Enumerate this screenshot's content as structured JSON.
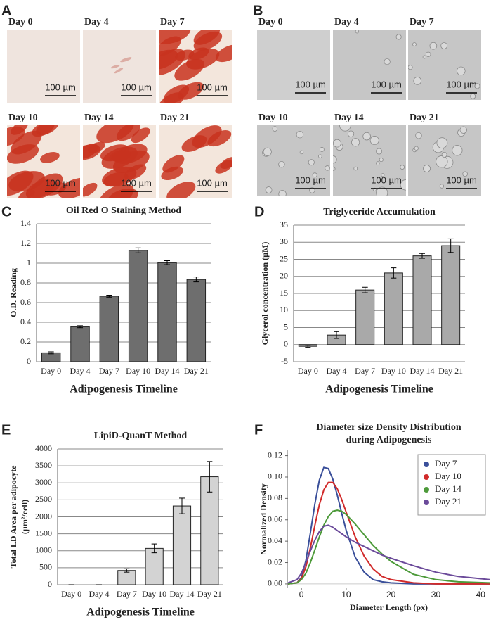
{
  "image_panels": [
    {
      "panel_label": "A",
      "images": [
        {
          "label": "Day 0",
          "scale": "100 µm"
        },
        {
          "label": "Day 4",
          "scale": "100 µm"
        },
        {
          "label": "Day 7",
          "scale": "100 µm"
        },
        {
          "label": "Day 10",
          "scale": "100 µm"
        },
        {
          "label": "Day 14",
          "scale": "100 µm"
        },
        {
          "label": "Day 21",
          "scale": "100 µm"
        }
      ]
    },
    {
      "panel_label": "B",
      "images": [
        {
          "label": "Day 0",
          "scale": "100 µm"
        },
        {
          "label": "Day 4",
          "scale": "100 µm"
        },
        {
          "label": "Day 7",
          "scale": "100 µm"
        },
        {
          "label": "Day 10",
          "scale": "100 µm"
        },
        {
          "label": "Day 14",
          "scale": "100 µm"
        },
        {
          "label": "Day 21",
          "scale": "100 µm"
        }
      ]
    }
  ],
  "chart_data": [
    {
      "type": "bar",
      "panel_label": "C",
      "title": "Oil Red O Staining Method",
      "xlabel": "Adipogenesis Timeline",
      "ylabel": [
        "O.D. Reading"
      ],
      "categories": [
        "Day 0",
        "Day 4",
        "Day 7",
        "Day 10",
        "Day 14",
        "Day 21"
      ],
      "values": [
        0.09,
        0.355,
        0.665,
        1.13,
        1.005,
        0.835
      ],
      "errors": [
        0.01,
        0.01,
        0.01,
        0.025,
        0.02,
        0.025
      ],
      "color": "#6e6e6e",
      "ylim": [
        0,
        1.4
      ],
      "yticks": [
        0,
        0.2,
        0.4,
        0.6,
        0.8,
        1,
        1.2,
        1.4
      ],
      "grid": true
    },
    {
      "type": "bar",
      "panel_label": "D",
      "title": "Triglyceride Accumulation",
      "xlabel": "Adipogenesis Timeline",
      "ylabel": [
        "Glycerol concentration (µM)"
      ],
      "categories": [
        "Day 0",
        "Day 4",
        "Day 7",
        "Day 10",
        "Day 14",
        "Day 21"
      ],
      "values": [
        -0.5,
        2.8,
        16,
        21,
        26,
        29
      ],
      "errors": [
        0.3,
        1,
        0.8,
        1.5,
        0.7,
        2
      ],
      "color": "#a9a9a9",
      "ylim": [
        -5,
        35
      ],
      "yticks": [
        -5,
        0,
        5,
        10,
        15,
        20,
        25,
        30,
        35
      ],
      "grid": true
    },
    {
      "type": "bar",
      "panel_label": "E",
      "title": "LipiD-QuanT Method",
      "xlabel": "Adipogenesis Timeline",
      "ylabel": [
        "Total LD Area per adipocyte",
        "(µm²/cell)"
      ],
      "categories": [
        "Day 0",
        "Day 4",
        "Day 7",
        "Day 10",
        "Day 14",
        "Day 21"
      ],
      "values": [
        0,
        0,
        420,
        1070,
        2320,
        3180
      ],
      "errors": [
        0,
        0,
        50,
        130,
        230,
        450
      ],
      "color": "#d3d3d3",
      "ylim": [
        0,
        4000
      ],
      "yticks": [
        0,
        500,
        1000,
        1500,
        2000,
        2500,
        3000,
        3500,
        4000
      ],
      "grid": true
    },
    {
      "type": "line",
      "panel_label": "F",
      "title": [
        "Diameter size Density Distribution",
        "during Adipogenesis"
      ],
      "xlabel": "Diameter Length (px)",
      "ylabel": [
        "Normalized Density"
      ],
      "legend": "top-right",
      "x": [
        -3,
        -1,
        0,
        1,
        2,
        3,
        4,
        5,
        6,
        7,
        8,
        9,
        10,
        12,
        14,
        16,
        18,
        20,
        25,
        30,
        35,
        42
      ],
      "series": [
        {
          "name": "Day 7",
          "color": "#3a4f9a",
          "values": [
            0,
            0.001,
            0.006,
            0.022,
            0.048,
            0.075,
            0.097,
            0.109,
            0.108,
            0.098,
            0.083,
            0.066,
            0.05,
            0.025,
            0.011,
            0.004,
            0.002,
            0.001,
            0,
            0,
            0,
            0
          ]
        },
        {
          "name": "Day 10",
          "color": "#d12a2a",
          "values": [
            0,
            0.001,
            0.005,
            0.016,
            0.034,
            0.055,
            0.074,
            0.088,
            0.095,
            0.095,
            0.089,
            0.079,
            0.067,
            0.044,
            0.026,
            0.014,
            0.007,
            0.004,
            0.001,
            0,
            0,
            0
          ]
        },
        {
          "name": "Day 14",
          "color": "#4d9a3a",
          "values": [
            0,
            0.001,
            0.004,
            0.01,
            0.02,
            0.032,
            0.044,
            0.055,
            0.063,
            0.068,
            0.069,
            0.068,
            0.065,
            0.056,
            0.046,
            0.036,
            0.028,
            0.021,
            0.009,
            0.004,
            0.002,
            0.001
          ]
        },
        {
          "name": "Day 21",
          "color": "#6b4a9a",
          "values": [
            0.001,
            0.004,
            0.01,
            0.02,
            0.031,
            0.041,
            0.049,
            0.054,
            0.055,
            0.053,
            0.05,
            0.047,
            0.044,
            0.039,
            0.035,
            0.031,
            0.027,
            0.024,
            0.017,
            0.011,
            0.007,
            0.004
          ]
        }
      ],
      "xlim": [
        -3,
        42
      ],
      "xticks": [
        0,
        10,
        20,
        30,
        40
      ],
      "ylim": [
        -0.004,
        0.125
      ],
      "yticks": [
        {
          "value": 0,
          "label": "0.00"
        },
        {
          "value": 0.02,
          "label": "0.02"
        },
        {
          "value": 0.04,
          "label": "0.04"
        },
        {
          "value": 0.06,
          "label": "0.06"
        },
        {
          "value": 0.08,
          "label": "0.08"
        },
        {
          "value": 0.1,
          "label": "0.10"
        },
        {
          "value": 0.12,
          "label": "0.12"
        }
      ],
      "grid": false
    }
  ]
}
